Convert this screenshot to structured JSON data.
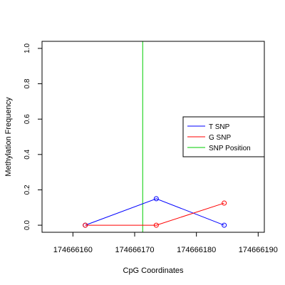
{
  "chart_data": {
    "type": "line",
    "title": "",
    "xlabel": "CpG Coordinates",
    "ylabel": "Methylation Frequency",
    "xlim": [
      174666155,
      174666191
    ],
    "ylim": [
      -0.04,
      1.04
    ],
    "x_ticks": [
      174666160,
      174666170,
      174666180,
      174666190
    ],
    "x_tick_labels": [
      "174666160",
      "174666170",
      "174666180",
      "174666190"
    ],
    "y_ticks": [
      0.0,
      0.2,
      0.4,
      0.6,
      0.8,
      1.0
    ],
    "y_tick_labels": [
      "0.0",
      "0.2",
      "0.4",
      "0.6",
      "0.8",
      "1.0"
    ],
    "grid": false,
    "legend_position": "right",
    "series": [
      {
        "name": "T SNP",
        "color": "#0000ff",
        "x": [
          174666162,
          174666173.5,
          174666184.5
        ],
        "y": [
          0.0,
          0.15,
          0.0
        ]
      },
      {
        "name": "G SNP",
        "color": "#ff0000",
        "x": [
          174666162,
          174666173.5,
          174666184.5
        ],
        "y": [
          0.0,
          0.0,
          0.125
        ]
      }
    ],
    "vlines": [
      {
        "name": "SNP Position",
        "color": "#00cc00",
        "x": 174666171.3
      }
    ]
  }
}
